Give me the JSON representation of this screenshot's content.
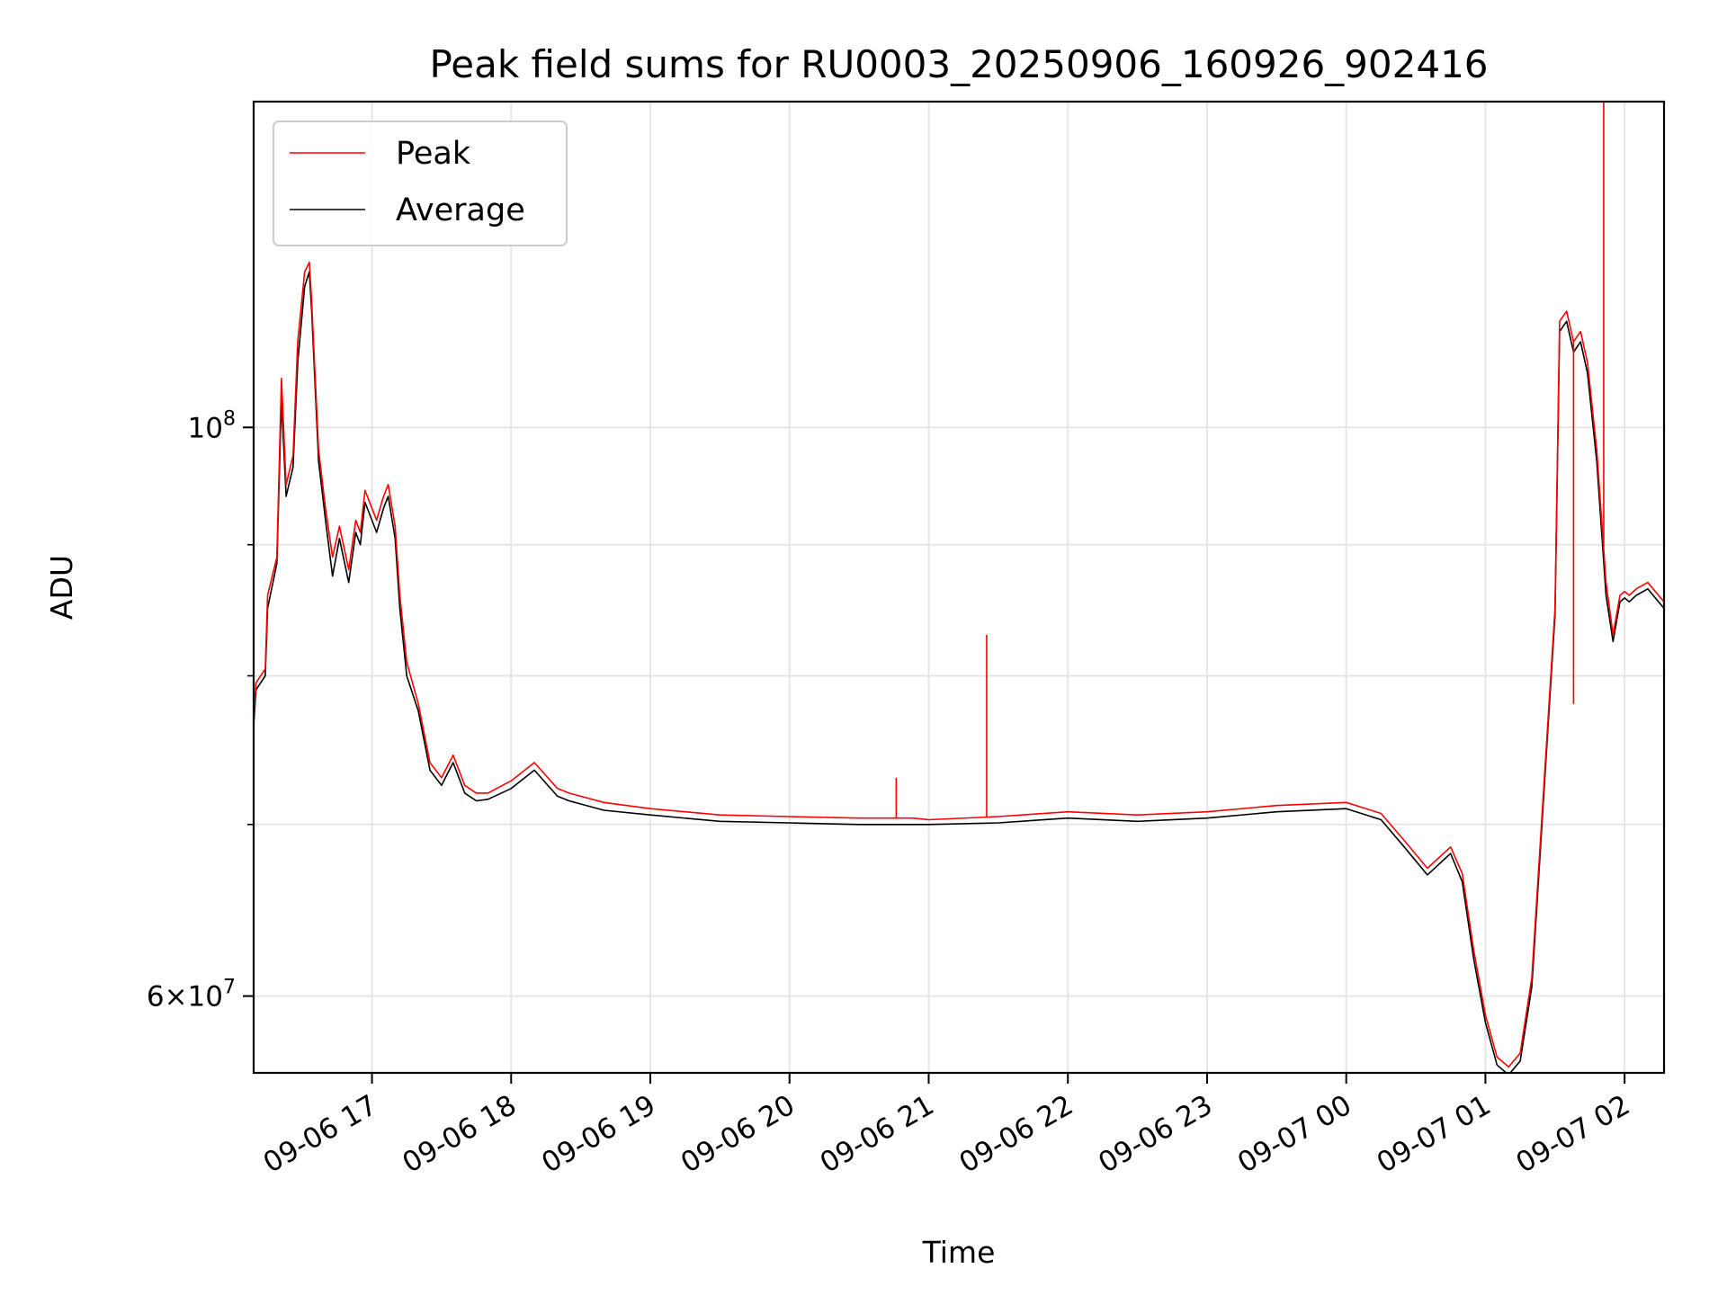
{
  "chart_data": {
    "type": "line",
    "title": "Peak field sums for RU0003_20250906_160926_902416",
    "xlabel": "Time",
    "ylabel": "ADU",
    "yscale": "log",
    "xlim": [
      "2025-09-06 16:09",
      "2025-09-07 02:17"
    ],
    "ylim": [
      56000000,
      134000000
    ],
    "grid": true,
    "legend_position": "top-left",
    "x_ticks": [
      "09-06 17",
      "09-06 18",
      "09-06 19",
      "09-06 20",
      "09-06 21",
      "09-06 22",
      "09-06 23",
      "09-07 00",
      "09-07 01",
      "09-07 02"
    ],
    "y_ticks": [
      {
        "value": 100000000,
        "mantissa": "",
        "base": "10",
        "exponent": "8"
      },
      {
        "value": 60000000,
        "mantissa": "6×",
        "base": "10",
        "exponent": "7"
      }
    ],
    "y_minor_ticks": [
      70000000,
      80000000,
      90000000
    ],
    "series": [
      {
        "name": "Peak",
        "color": "#ff0000",
        "x": [
          "2025-09-06 16:09",
          "2025-09-06 16:10",
          "2025-09-06 16:14",
          "2025-09-06 16:15",
          "2025-09-06 16:19",
          "2025-09-06 16:21",
          "2025-09-06 16:23",
          "2025-09-06 16:26",
          "2025-09-06 16:28",
          "2025-09-06 16:31",
          "2025-09-06 16:33",
          "2025-09-06 16:34",
          "2025-09-06 16:37",
          "2025-09-06 16:40",
          "2025-09-06 16:43",
          "2025-09-06 16:46",
          "2025-09-06 16:50",
          "2025-09-06 16:53",
          "2025-09-06 16:55",
          "2025-09-06 16:57",
          "2025-09-06 17:00",
          "2025-09-06 17:02",
          "2025-09-06 17:05",
          "2025-09-06 17:07",
          "2025-09-06 17:10",
          "2025-09-06 17:12",
          "2025-09-06 17:15",
          "2025-09-06 17:20",
          "2025-09-06 17:25",
          "2025-09-06 17:30",
          "2025-09-06 17:35",
          "2025-09-06 17:40",
          "2025-09-06 17:45",
          "2025-09-06 17:50",
          "2025-09-06 18:00",
          "2025-09-06 18:10",
          "2025-09-06 18:20",
          "2025-09-06 18:25",
          "2025-09-06 18:30",
          "2025-09-06 18:40",
          "2025-09-06 19:00",
          "2025-09-06 19:30",
          "2025-09-06 20:00",
          "2025-09-06 20:30",
          "2025-09-06 20:53",
          "2025-09-06 21:00",
          "2025-09-06 21:30",
          "2025-09-06 22:00",
          "2025-09-06 22:30",
          "2025-09-06 23:00",
          "2025-09-06 23:30",
          "2025-09-07 00:00",
          "2025-09-07 00:15",
          "2025-09-07 00:25",
          "2025-09-07 00:35",
          "2025-09-07 00:45",
          "2025-09-07 00:50",
          "2025-09-07 00:55",
          "2025-09-07 01:00",
          "2025-09-07 01:05",
          "2025-09-07 01:10",
          "2025-09-07 01:15",
          "2025-09-07 01:20",
          "2025-09-07 01:25",
          "2025-09-07 01:30",
          "2025-09-07 01:32",
          "2025-09-07 01:35",
          "2025-09-07 01:38",
          "2025-09-07 01:41",
          "2025-09-07 01:44",
          "2025-09-07 01:48",
          "2025-09-07 01:52",
          "2025-09-07 01:55",
          "2025-09-07 01:58",
          "2025-09-07 02:00",
          "2025-09-07 02:02",
          "2025-09-07 02:05",
          "2025-09-07 02:10",
          "2025-09-07 02:17"
        ],
        "y": [
          77000000,
          79500000,
          80500000,
          86000000,
          89000000,
          104500000,
          95000000,
          97500000,
          108000000,
          115000000,
          116000000,
          112000000,
          98000000,
          93000000,
          89000000,
          91500000,
          88000000,
          92000000,
          91000000,
          94500000,
          93000000,
          92000000,
          94000000,
          95000000,
          91500000,
          86000000,
          81000000,
          78000000,
          74000000,
          73000000,
          74500000,
          72500000,
          72000000,
          72000000,
          72800000,
          74000000,
          72300000,
          72000000,
          71800000,
          71400000,
          71000000,
          70600000,
          70500000,
          70400000,
          70400000,
          70300000,
          70500000,
          70800000,
          70600000,
          70800000,
          71200000,
          71400000,
          70700000,
          69000000,
          67300000,
          68600000,
          67000000,
          62500000,
          59000000,
          56800000,
          56300000,
          57000000,
          61000000,
          72000000,
          85000000,
          110000000,
          111000000,
          108000000,
          109000000,
          106000000,
          98000000,
          87000000,
          83000000,
          86000000,
          86300000,
          86000000,
          86500000,
          87000000,
          85500000
        ]
      },
      {
        "name": "Average",
        "color": "#000000",
        "x": [
          "2025-09-06 16:09",
          "2025-09-06 16:10",
          "2025-09-06 16:14",
          "2025-09-06 16:15",
          "2025-09-06 16:19",
          "2025-09-06 16:21",
          "2025-09-06 16:23",
          "2025-09-06 16:26",
          "2025-09-06 16:28",
          "2025-09-06 16:31",
          "2025-09-06 16:33",
          "2025-09-06 16:34",
          "2025-09-06 16:37",
          "2025-09-06 16:40",
          "2025-09-06 16:43",
          "2025-09-06 16:46",
          "2025-09-06 16:50",
          "2025-09-06 16:53",
          "2025-09-06 16:55",
          "2025-09-06 16:57",
          "2025-09-06 17:00",
          "2025-09-06 17:02",
          "2025-09-06 17:05",
          "2025-09-06 17:07",
          "2025-09-06 17:10",
          "2025-09-06 17:12",
          "2025-09-06 17:15",
          "2025-09-06 17:20",
          "2025-09-06 17:25",
          "2025-09-06 17:30",
          "2025-09-06 17:35",
          "2025-09-06 17:40",
          "2025-09-06 17:45",
          "2025-09-06 17:50",
          "2025-09-06 18:00",
          "2025-09-06 18:10",
          "2025-09-06 18:20",
          "2025-09-06 18:25",
          "2025-09-06 18:30",
          "2025-09-06 18:40",
          "2025-09-06 19:00",
          "2025-09-06 19:30",
          "2025-09-06 20:00",
          "2025-09-06 20:30",
          "2025-09-06 20:53",
          "2025-09-06 21:00",
          "2025-09-06 21:30",
          "2025-09-06 22:00",
          "2025-09-06 22:30",
          "2025-09-06 23:00",
          "2025-09-06 23:30",
          "2025-09-07 00:00",
          "2025-09-07 00:15",
          "2025-09-07 00:25",
          "2025-09-07 00:35",
          "2025-09-07 00:45",
          "2025-09-07 00:50",
          "2025-09-07 00:55",
          "2025-09-07 01:00",
          "2025-09-07 01:05",
          "2025-09-07 01:10",
          "2025-09-07 01:15",
          "2025-09-07 01:20",
          "2025-09-07 01:25",
          "2025-09-07 01:30",
          "2025-09-07 01:32",
          "2025-09-07 01:35",
          "2025-09-07 01:38",
          "2025-09-07 01:41",
          "2025-09-07 01:44",
          "2025-09-07 01:48",
          "2025-09-07 01:52",
          "2025-09-07 01:55",
          "2025-09-07 01:58",
          "2025-09-07 02:00",
          "2025-09-07 02:02",
          "2025-09-07 02:05",
          "2025-09-07 02:10",
          "2025-09-07 02:17"
        ],
        "y": [
          76500000,
          79000000,
          80000000,
          85000000,
          88500000,
          102500000,
          94000000,
          96500000,
          106000000,
          113500000,
          115000000,
          111000000,
          97000000,
          92000000,
          87500000,
          90500000,
          87000000,
          91000000,
          90000000,
          93500000,
          92000000,
          91000000,
          93000000,
          94000000,
          90500000,
          85000000,
          80000000,
          77500000,
          73500000,
          72500000,
          74000000,
          72000000,
          71500000,
          71600000,
          72300000,
          73500000,
          71800000,
          71500000,
          71300000,
          70900000,
          70600000,
          70200000,
          70100000,
          70000000,
          70000000,
          70000000,
          70100000,
          70400000,
          70200000,
          70400000,
          70800000,
          71000000,
          70300000,
          68600000,
          66900000,
          68200000,
          66500000,
          62000000,
          58600000,
          56400000,
          55900000,
          56600000,
          60500000,
          71500000,
          84500000,
          109000000,
          110000000,
          107000000,
          108000000,
          105000000,
          97000000,
          86000000,
          82500000,
          85500000,
          85800000,
          85500000,
          86000000,
          86500000,
          85000000
        ]
      }
    ],
    "spikes": [
      {
        "series": "Peak",
        "x": "2025-09-06 20:46",
        "y": 73000000
      },
      {
        "series": "Peak",
        "x": "2025-09-06 21:25",
        "y": 83000000
      },
      {
        "series": "Peak",
        "x": "2025-09-07 01:38",
        "y": 78000000
      },
      {
        "series": "Peak",
        "x": "2025-09-07 01:51",
        "y": 134000000
      }
    ]
  }
}
